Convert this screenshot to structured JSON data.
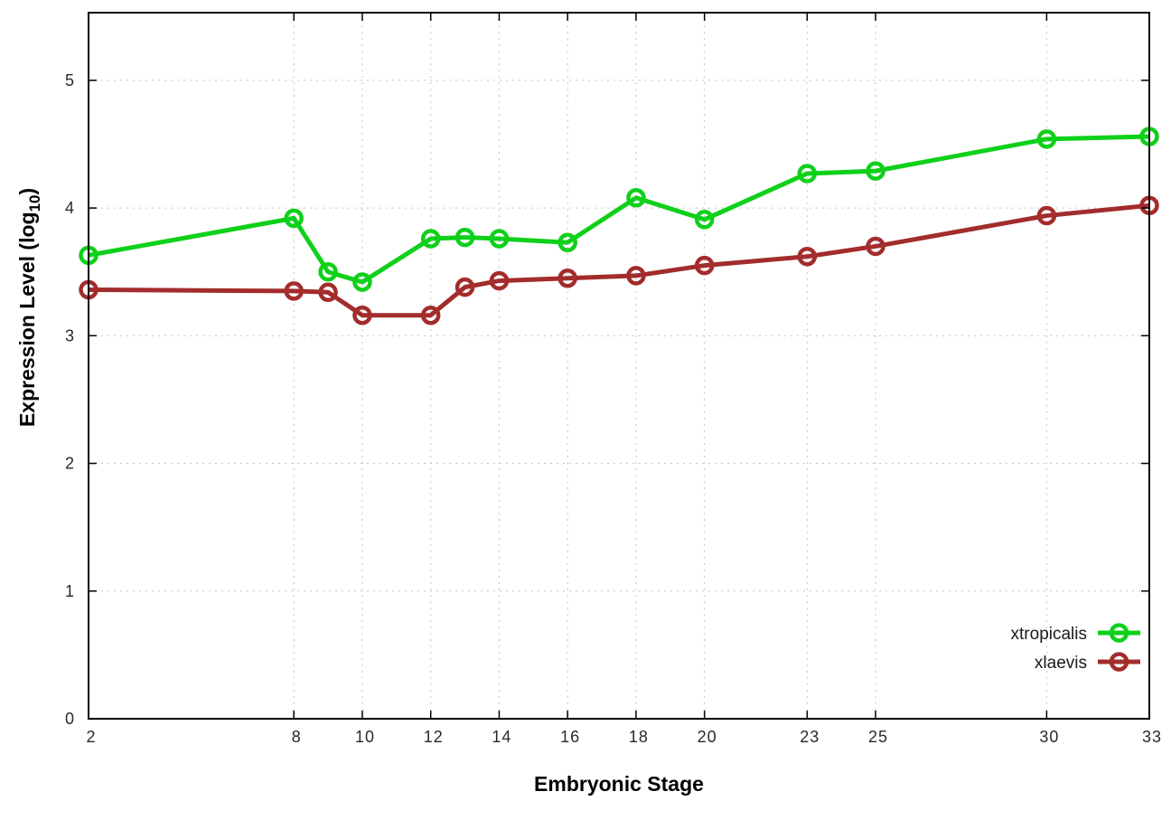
{
  "chart_data": {
    "type": "line",
    "title": "",
    "xlabel": "Embryonic Stage",
    "ylabel": "Expression Level (log10)",
    "ylabel_parts": {
      "main": "Expression Level (log",
      "sub": "10",
      "end": ")"
    },
    "xlim": [
      2,
      33
    ],
    "ylim": [
      0,
      5.53
    ],
    "xticks": [
      2,
      8,
      10,
      12,
      14,
      16,
      18,
      20,
      23,
      25,
      30,
      33
    ],
    "yticks": [
      0,
      1,
      2,
      3,
      4,
      5
    ],
    "grid": true,
    "grid_style": "dotted",
    "legend_position": "inside-bottom-right",
    "marker": "open-circle",
    "x": [
      2,
      8,
      9,
      10,
      12,
      13,
      14,
      16,
      18,
      20,
      23,
      25,
      30,
      33
    ],
    "series": [
      {
        "name": "xtropicalis",
        "color": "#0fd01a",
        "values": [
          3.63,
          3.92,
          3.5,
          3.42,
          3.76,
          3.77,
          3.76,
          3.73,
          4.08,
          3.91,
          4.27,
          4.29,
          4.54,
          4.56
        ]
      },
      {
        "name": "xlaevis",
        "color": "#a32c2c",
        "values": [
          3.36,
          3.35,
          3.34,
          3.16,
          3.16,
          3.38,
          3.43,
          3.45,
          3.47,
          3.55,
          3.62,
          3.7,
          3.94,
          4.02
        ]
      }
    ],
    "colors": {
      "grid": "#c4c4c4",
      "border": "#000000",
      "tick_text": "#2a2a2a"
    }
  }
}
